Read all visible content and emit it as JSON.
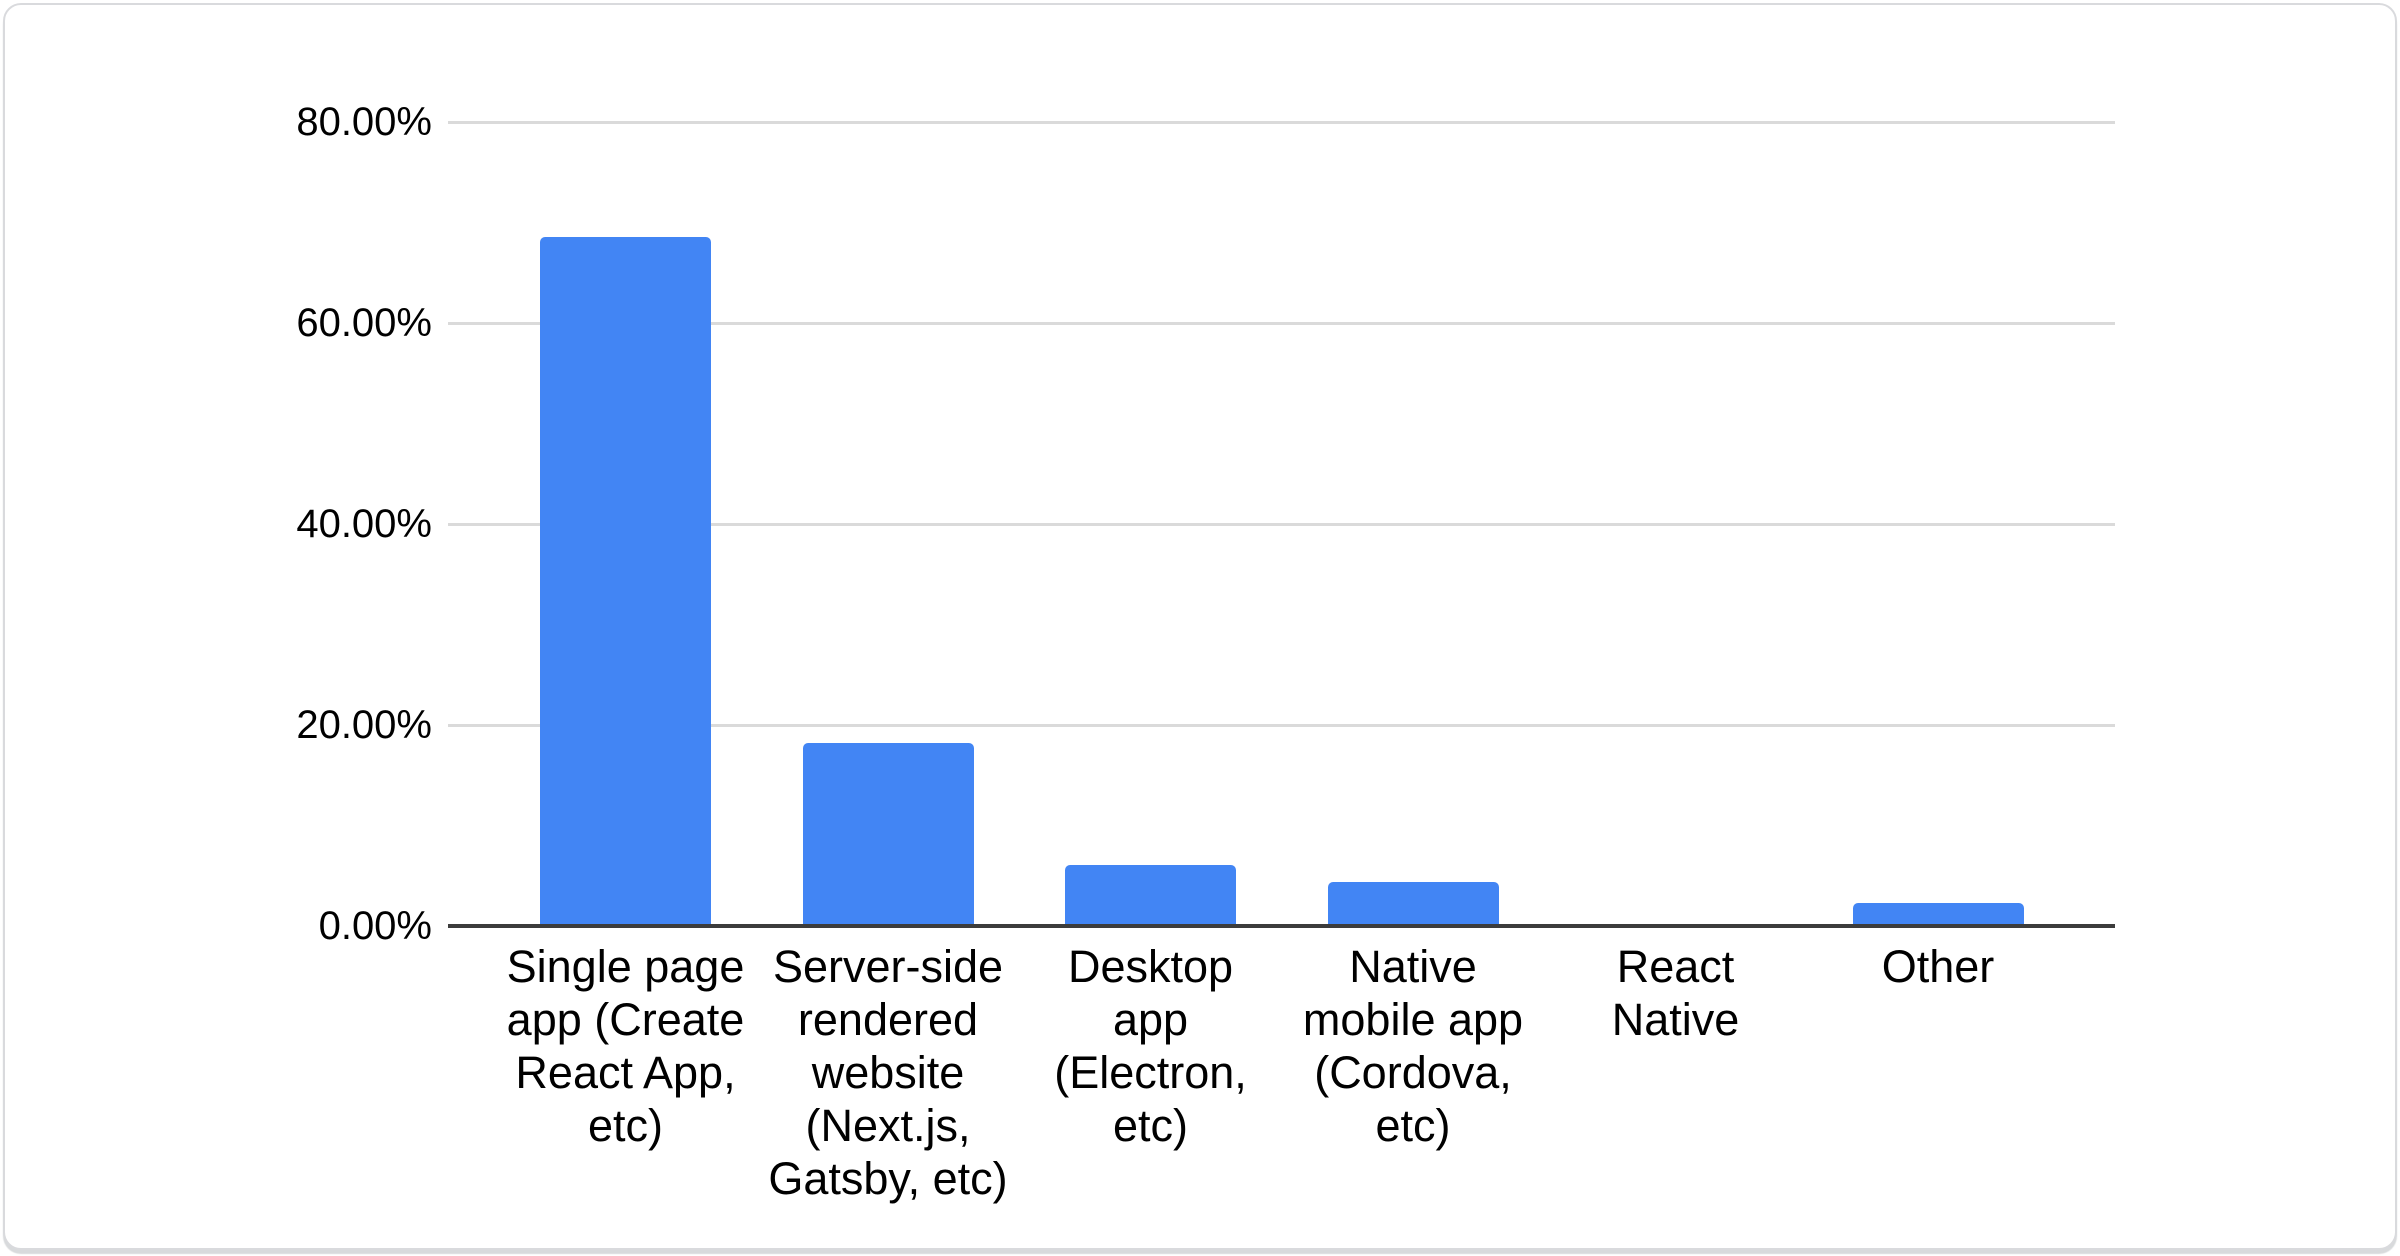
{
  "chart_data": {
    "type": "bar",
    "categories": [
      "Single page app (Create React App, etc)",
      "Server-side rendered website (Next.js, Gatsby, etc)",
      "Desktop app (Electron, etc)",
      "Native mobile app (Cordova, etc)",
      "React Native",
      "Other"
    ],
    "categories_wrapped": [
      "Single page\napp (Create\nReact App,\netc)",
      "Server-side\nrendered\nwebsite\n(Next.js,\nGatsby, etc)",
      "Desktop\napp\n(Electron,\netc)",
      "Native\nmobile app\n(Cordova,\netc)",
      "React\nNative",
      "Other"
    ],
    "values": [
      68.6,
      18.2,
      6.1,
      4.4,
      0,
      2.3
    ],
    "value_unit": "%",
    "y_ticks": [
      {
        "value": 80,
        "label": "80.00%"
      },
      {
        "value": 60,
        "label": "60.00%"
      },
      {
        "value": 40,
        "label": "40.00%"
      },
      {
        "value": 20,
        "label": "20.00%"
      },
      {
        "value": 0,
        "label": "0.00%"
      }
    ],
    "ylim": [
      0,
      80
    ],
    "xlabel": "",
    "ylabel": "",
    "grid": true,
    "legend_position": "none",
    "bar_color": "#4285f4",
    "gridline_color": "#dadada",
    "axis_line_color": "#3c3c3c",
    "text_color": "#000000"
  }
}
